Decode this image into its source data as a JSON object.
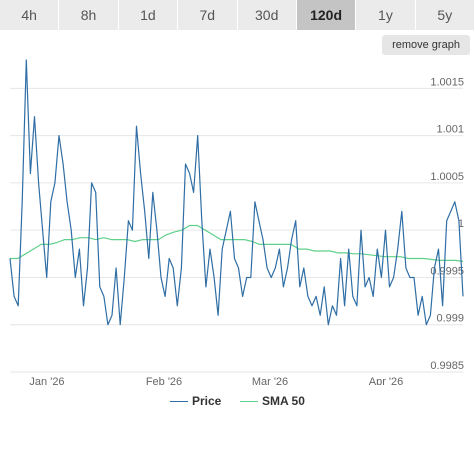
{
  "tabs": [
    {
      "label": "4h"
    },
    {
      "label": "8h"
    },
    {
      "label": "1d"
    },
    {
      "label": "7d"
    },
    {
      "label": "30d"
    },
    {
      "label": "120d",
      "active": true
    },
    {
      "label": "1y"
    },
    {
      "label": "5y"
    }
  ],
  "remove_button": "remove graph",
  "colors": {
    "price": "#2f6ea5",
    "sma": "#5fd08a",
    "grid": "#e6e6e6",
    "tab_active": "#c4c4c4"
  },
  "chart_data": {
    "type": "line",
    "x_ticks": [
      "Jan '26",
      "Feb '26",
      "Mar '26",
      "Apr '26"
    ],
    "ylim": [
      0.9985,
      1.0018
    ],
    "y_ticks": [
      "0.9985",
      "0.999",
      "0.9995",
      "1",
      "1.0005",
      "1.001",
      "1.0015"
    ],
    "legend_position": "bottom",
    "series": [
      {
        "name": "Price",
        "values": [
          0.9997,
          0.9993,
          0.9992,
          1.0003,
          1.0018,
          1.0006,
          1.0012,
          1.0005,
          1.0,
          0.9995,
          1.0003,
          1.0005,
          1.001,
          1.0007,
          1.0003,
          1.0,
          0.9995,
          0.9998,
          0.9992,
          0.9996,
          1.0005,
          1.0004,
          0.9994,
          0.9993,
          0.999,
          0.9991,
          0.9996,
          0.999,
          0.9995,
          1.0001,
          1.0,
          1.0011,
          1.0006,
          1.0002,
          0.9997,
          1.0004,
          1.0,
          0.9995,
          0.9993,
          0.9997,
          0.9996,
          0.9992,
          0.9996,
          1.0007,
          1.0006,
          1.0004,
          1.001,
          1.0001,
          0.9994,
          0.9998,
          0.9995,
          0.9991,
          0.9998,
          1.0,
          1.0002,
          0.9997,
          0.9996,
          0.9993,
          0.9995,
          0.9995,
          1.0003,
          1.0001,
          0.9999,
          0.9996,
          0.9995,
          0.9996,
          0.9998,
          0.9994,
          0.9996,
          0.9999,
          1.0001,
          0.9994,
          0.9996,
          0.9993,
          0.9992,
          0.9993,
          0.9991,
          0.9994,
          0.999,
          0.9992,
          0.9991,
          0.9997,
          0.9992,
          0.9998,
          0.9993,
          0.9992,
          1.0,
          0.9994,
          0.9995,
          0.9993,
          0.9998,
          0.9995,
          1.0,
          0.9994,
          0.9995,
          0.9998,
          1.0002,
          0.9996,
          0.9995,
          0.9995,
          0.9991,
          0.9993,
          0.999,
          0.9991,
          0.9996,
          0.9998,
          0.9992,
          1.0001,
          1.0002,
          1.0003,
          1.0001,
          0.9993
        ]
      },
      {
        "name": "SMA 50",
        "values": [
          0.9997,
          0.9997,
          0.99975,
          0.9998,
          0.99985,
          0.99985,
          0.99987,
          0.9999,
          0.9999,
          0.99992,
          0.99992,
          0.9999,
          0.99992,
          0.9999,
          0.9999,
          0.9999,
          0.99988,
          0.9999,
          0.9999,
          0.9999,
          0.99995,
          0.99998,
          1.0,
          1.00005,
          1.00005,
          1.0,
          0.99995,
          0.9999,
          0.9999,
          0.9999,
          0.9999,
          0.99988,
          0.99985,
          0.99985,
          0.99985,
          0.99985,
          0.99985,
          0.9998,
          0.9998,
          0.99978,
          0.99978,
          0.99978,
          0.99976,
          0.99976,
          0.99975,
          0.99975,
          0.99974,
          0.99973,
          0.99972,
          0.99972,
          0.99972,
          0.9997,
          0.9997,
          0.9997,
          0.99969,
          0.99968,
          0.99968,
          0.99968,
          0.99967
        ]
      }
    ]
  }
}
